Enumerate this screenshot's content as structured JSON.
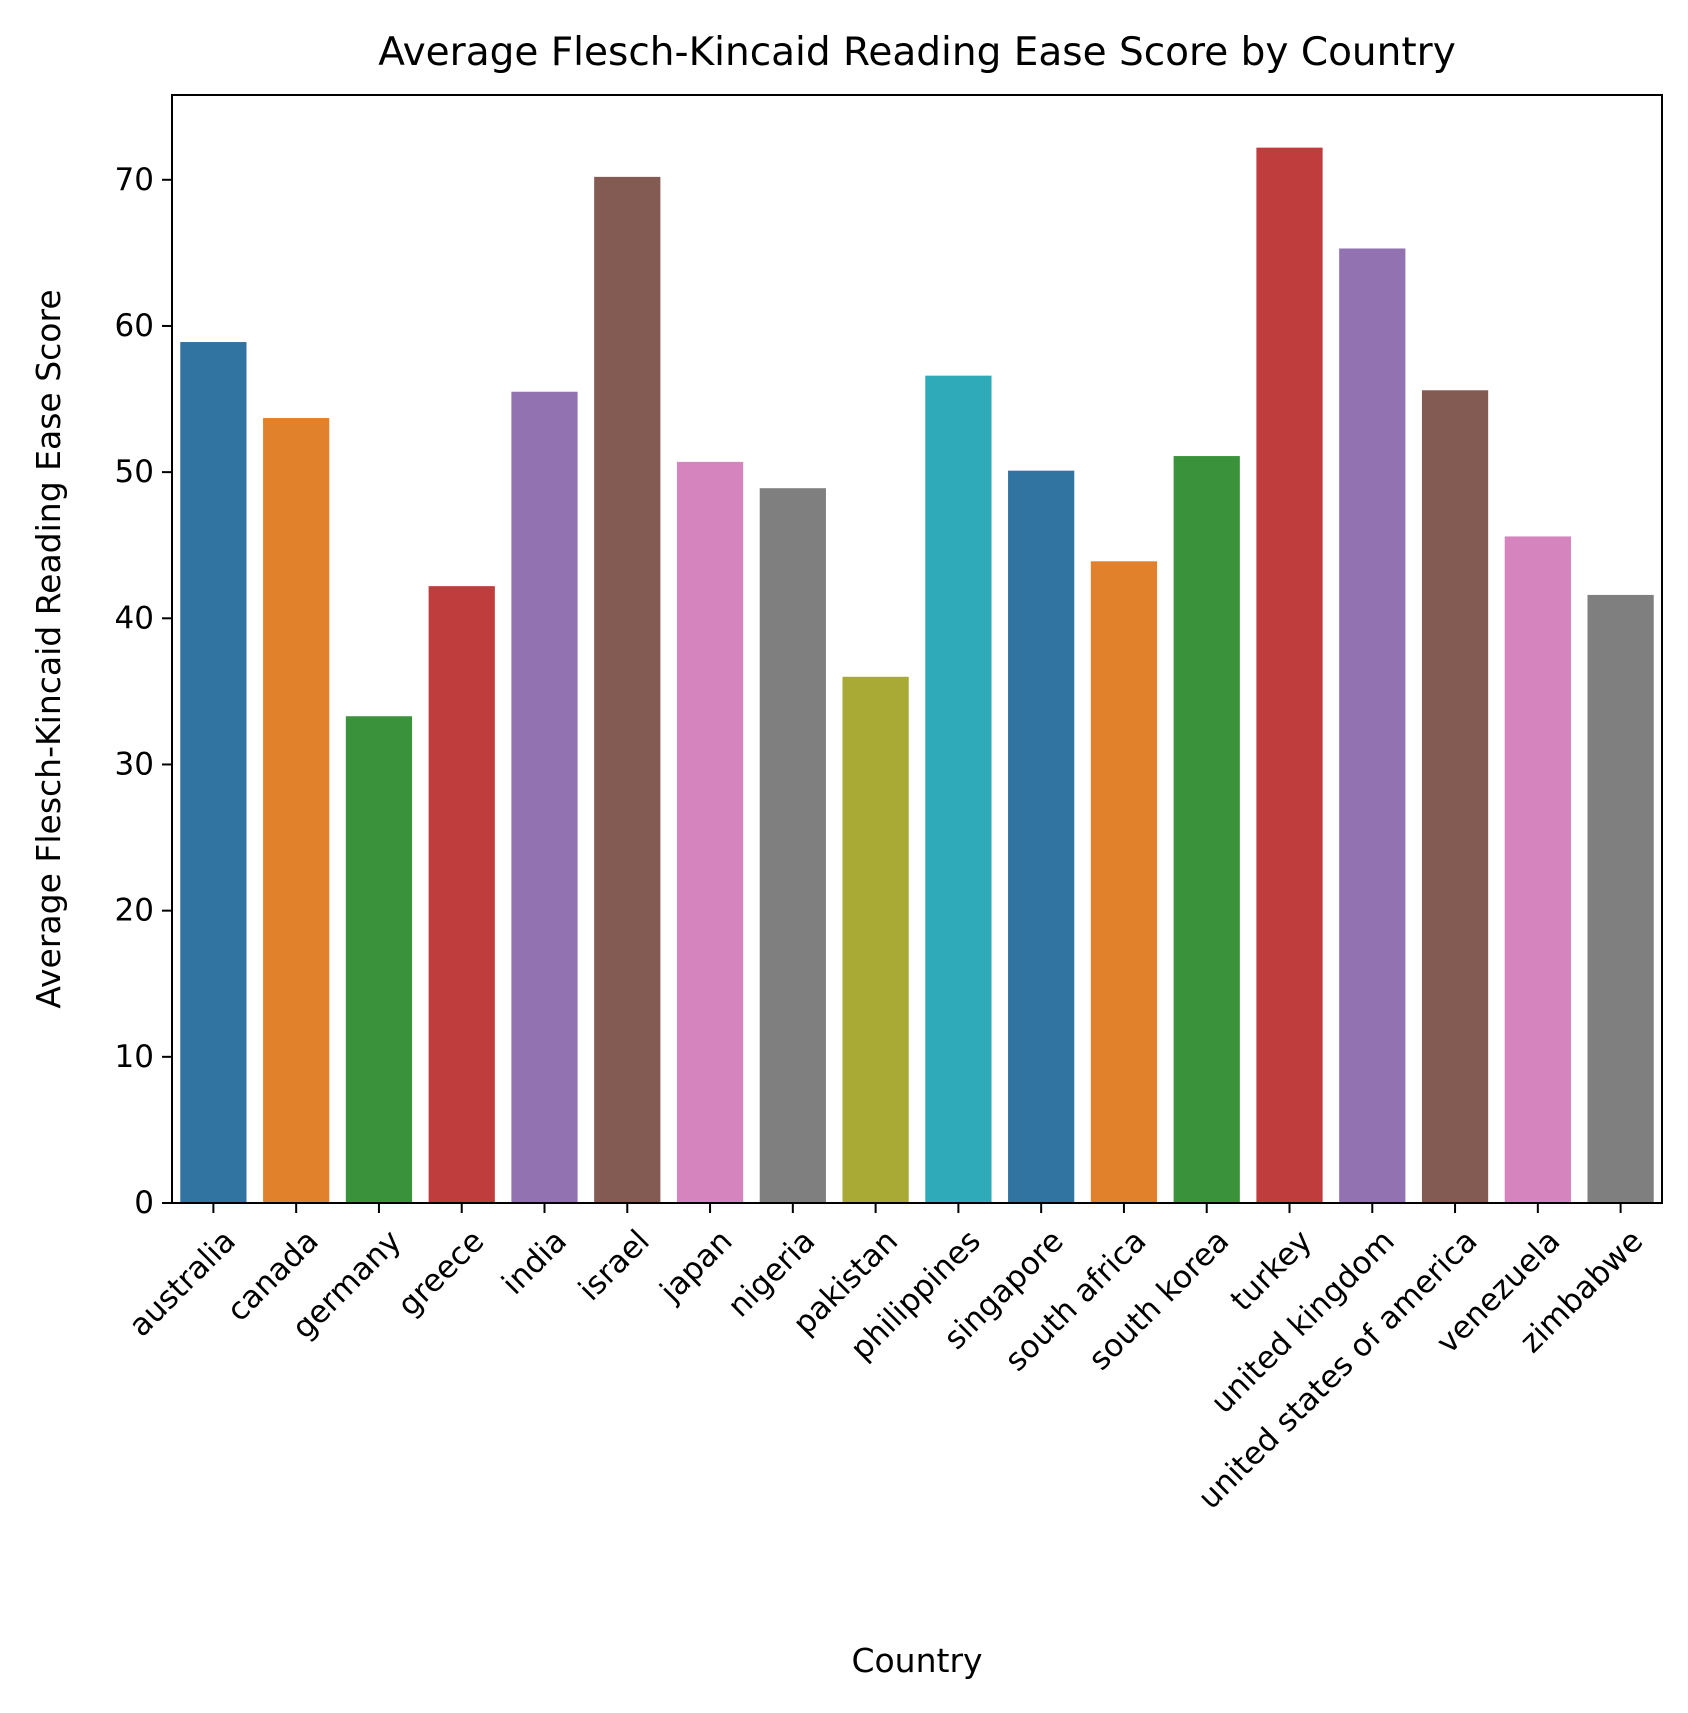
{
  "chart_data": {
    "type": "bar",
    "title": "Average Flesch-Kincaid Reading Ease Score by Country",
    "xlabel": "Country",
    "ylabel": "Average Flesch-Kincaid Reading Ease Score",
    "categories": [
      "australia",
      "canada",
      "germany",
      "greece",
      "india",
      "israel",
      "japan",
      "nigeria",
      "pakistan",
      "philippines",
      "singapore",
      "south africa",
      "south korea",
      "turkey",
      "united kingdom",
      "united states of america",
      "venezuela",
      "zimbabwe"
    ],
    "values": [
      58.9,
      53.7,
      33.3,
      42.2,
      55.5,
      70.2,
      50.7,
      48.9,
      36.0,
      56.6,
      50.1,
      43.9,
      51.1,
      72.2,
      65.3,
      55.6,
      45.6,
      41.6
    ],
    "colors": [
      "#3274a1",
      "#e1812c",
      "#3a923a",
      "#c03d3e",
      "#9372b2",
      "#845b53",
      "#d684bd",
      "#7f7f7f",
      "#a9aa35",
      "#2eaab8",
      "#3274a1",
      "#e1812c",
      "#3a923a",
      "#c03d3e",
      "#9372b2",
      "#845b53",
      "#d684bd",
      "#7f7f7f"
    ],
    "ylim": [
      0,
      75.8
    ],
    "yticks": [
      0,
      10,
      20,
      30,
      40,
      50,
      60,
      70
    ],
    "grid": false,
    "legend": "none"
  }
}
